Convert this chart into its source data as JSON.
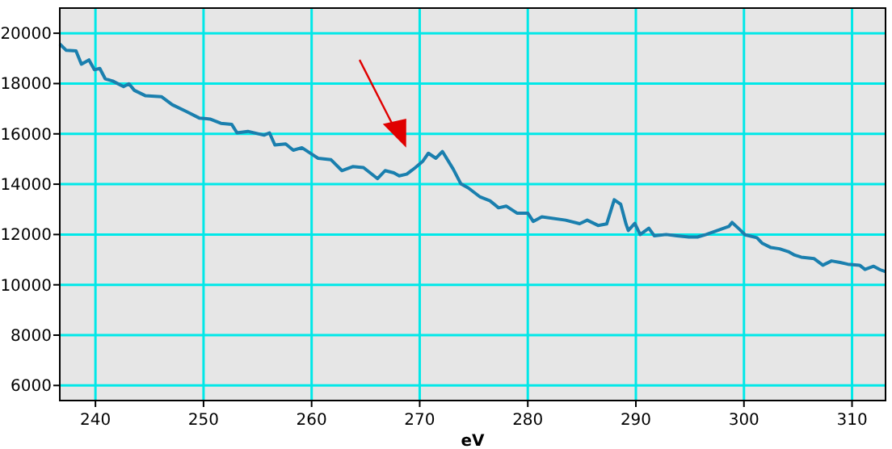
{
  "chart_data": {
    "type": "line",
    "xlabel": "eV",
    "xlim": [
      236.7,
      313.1
    ],
    "ylim": [
      5400,
      21000
    ],
    "xticks": [
      240,
      250,
      260,
      270,
      280,
      290,
      300,
      310
    ],
    "yticks": [
      6000,
      8000,
      10000,
      12000,
      14000,
      16000,
      18000,
      20000
    ],
    "grid": true,
    "series": [
      {
        "color": "#1a7fae",
        "x": [
          236.7,
          237.3,
          238.2,
          238.7,
          239.4,
          239.9,
          240.4,
          240.9,
          241.6,
          242.6,
          243.1,
          243.6,
          244.6,
          246.1,
          247.1,
          248.4,
          249.6,
          250.6,
          251.6,
          252.6,
          253.1,
          254.1,
          255.6,
          256.1,
          256.6,
          257.6,
          258.3,
          259.1,
          260.1,
          260.6,
          261.8,
          262.8,
          263.8,
          264.8,
          266.1,
          266.8,
          267.6,
          268.1,
          268.8,
          269.6,
          270.3,
          270.8,
          271.5,
          272.1,
          273.1,
          273.8,
          274.5,
          275.6,
          276.5,
          277.3,
          278.0,
          279.0,
          280.0,
          280.5,
          281.3,
          283.5,
          284.8,
          285.5,
          286.5,
          287.3,
          288.0,
          288.6,
          289.1,
          289.3,
          289.9,
          290.4,
          291.2,
          291.7,
          292.8,
          293.8,
          294.9,
          295.7,
          296.5,
          297.5,
          298.6,
          298.9,
          299.6,
          300.1,
          301.2,
          301.7,
          302.5,
          303.3,
          304.1,
          304.7,
          305.3,
          306.5,
          307.3,
          308.1,
          308.9,
          309.6,
          310.7,
          311.2,
          312.0,
          312.6,
          313.1
        ],
        "values": [
          19570,
          19320,
          19300,
          18770,
          18940,
          18550,
          18600,
          18190,
          18100,
          17880,
          17990,
          17730,
          17520,
          17480,
          17160,
          16890,
          16630,
          16590,
          16420,
          16380,
          16040,
          16100,
          15950,
          16040,
          15560,
          15600,
          15350,
          15450,
          15170,
          15030,
          14970,
          14540,
          14700,
          14660,
          14220,
          14540,
          14450,
          14330,
          14400,
          14660,
          14920,
          15230,
          15030,
          15300,
          14600,
          14020,
          13850,
          13490,
          13340,
          13060,
          13130,
          12850,
          12850,
          12520,
          12700,
          12570,
          12430,
          12570,
          12360,
          12420,
          13380,
          13200,
          12400,
          12160,
          12440,
          12000,
          12250,
          11950,
          12000,
          11950,
          11900,
          11900,
          12000,
          12150,
          12320,
          12480,
          12200,
          11990,
          11870,
          11650,
          11480,
          11430,
          11320,
          11180,
          11100,
          11040,
          10780,
          10950,
          10890,
          10820,
          10780,
          10610,
          10740,
          10600,
          10520
        ]
      }
    ]
  }
}
